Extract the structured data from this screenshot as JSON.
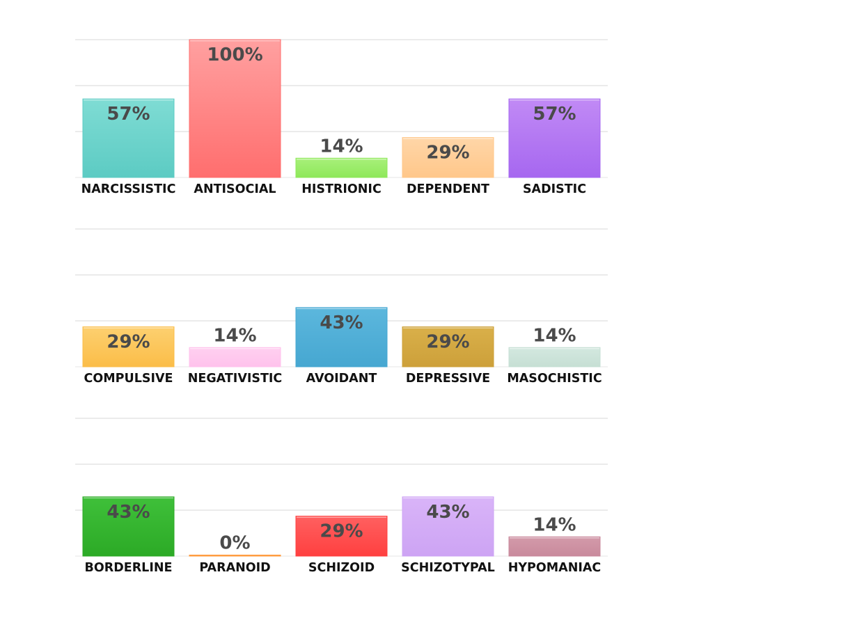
{
  "chart_data": [
    {
      "type": "bar",
      "categories": [
        "NARCISSISTIC",
        "ANTISOCIAL",
        "HISTRIONIC",
        "DEPENDENT",
        "SADISTIC"
      ],
      "values": [
        57,
        100,
        14,
        29,
        57
      ],
      "value_labels": [
        "57%",
        "100%",
        "14%",
        "29%",
        "57%"
      ],
      "colors": [
        [
          "#7fdcd4",
          "#5ccbc3"
        ],
        [
          "#ffa0a0",
          "#ff6e6e"
        ],
        [
          "#a8f07a",
          "#8ee85a"
        ],
        [
          "#ffd6a8",
          "#ffc78a"
        ],
        [
          "#c18af5",
          "#a667f0"
        ]
      ],
      "ylim": [
        0,
        100
      ],
      "grid": true
    },
    {
      "type": "bar",
      "categories": [
        "COMPULSIVE",
        "NEGATIVISTIC",
        "AVOIDANT",
        "DEPRESSIVE",
        "MASOCHISTIC"
      ],
      "values": [
        29,
        14,
        43,
        29,
        14
      ],
      "value_labels": [
        "29%",
        "14%",
        "43%",
        "29%",
        "14%"
      ],
      "colors": [
        [
          "#fdd070",
          "#fbbd48"
        ],
        [
          "#ffd0f0",
          "#ffc2ec"
        ],
        [
          "#5cb7dd",
          "#46a7d1"
        ],
        [
          "#d9b04a",
          "#cda03a"
        ],
        [
          "#d3e8df",
          "#c6dfd4"
        ]
      ],
      "ylim": [
        0,
        100
      ],
      "grid": true
    },
    {
      "type": "bar",
      "categories": [
        "BORDERLINE",
        "PARANOID",
        "SCHIZOID",
        "SCHIZOTYPAL",
        "HYPOMANIAC"
      ],
      "values": [
        43,
        0,
        29,
        43,
        14
      ],
      "value_labels": [
        "43%",
        "0%",
        "29%",
        "43%",
        "14%"
      ],
      "colors": [
        [
          "#3fc03a",
          "#2caa26"
        ],
        [
          "#ffb060",
          "#ff9a3c"
        ],
        [
          "#ff6060",
          "#ff4040"
        ],
        [
          "#d9b4f8",
          "#cda4f4"
        ],
        [
          "#d39aaa",
          "#c98a9c"
        ]
      ],
      "ylim": [
        0,
        100
      ],
      "grid": true
    }
  ]
}
